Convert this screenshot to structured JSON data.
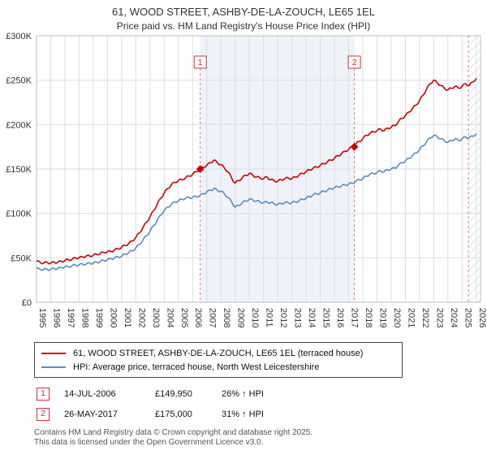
{
  "chart_data": {
    "type": "line",
    "title": "61, WOOD STREET, ASHBY-DE-LA-ZOUCH, LE65 1EL",
    "subtitle": "Price paid vs. HM Land Registry's House Price Index (HPI)",
    "ylim": [
      0,
      300
    ],
    "xlim": [
      1995,
      2026.3
    ],
    "y_ticks": [
      0,
      50,
      100,
      150,
      200,
      250,
      300
    ],
    "y_tick_labels": [
      "£0",
      "£50K",
      "£100K",
      "£150K",
      "£200K",
      "£250K",
      "£300K"
    ],
    "x_ticks": [
      1995,
      1996,
      1997,
      1998,
      1999,
      2000,
      2001,
      2002,
      2003,
      2004,
      2005,
      2006,
      2007,
      2008,
      2009,
      2010,
      2011,
      2012,
      2013,
      2014,
      2015,
      2016,
      2017,
      2018,
      2019,
      2020,
      2021,
      2022,
      2023,
      2024,
      2025,
      2026
    ],
    "grid": true,
    "legend_position": "bottom",
    "unit": "GBP thousands",
    "series": [
      {
        "name": "61, WOOD STREET, ASHBY-DE-LA-ZOUCH, LE65 1EL (terraced house)",
        "color": "#cc0000",
        "x_start": 1995,
        "x_step": 0.25,
        "values": [
          46,
          45,
          44,
          45,
          44,
          45,
          45,
          46,
          47,
          48,
          48,
          50,
          50,
          51,
          52,
          52,
          53,
          54,
          55,
          56,
          57,
          57,
          59,
          60,
          62,
          64,
          66,
          69,
          73,
          78,
          84,
          90,
          96,
          103,
          110,
          117,
          123,
          128,
          132,
          135,
          137,
          138,
          140,
          142,
          144,
          147,
          150,
          152,
          154,
          157,
          160,
          157,
          155,
          151,
          147,
          140,
          134,
          137,
          140,
          143,
          145,
          143,
          141,
          140,
          139,
          141,
          138,
          137,
          136,
          138,
          139,
          140,
          139,
          141,
          143,
          145,
          147,
          149,
          151,
          152,
          154,
          156,
          158,
          160,
          162,
          165,
          167,
          170,
          172,
          175,
          178,
          181,
          184,
          188,
          190,
          192,
          193,
          195,
          193,
          196,
          197,
          199,
          203,
          207,
          210,
          214,
          218,
          222,
          227,
          233,
          240,
          246,
          250,
          247,
          244,
          241,
          239,
          241,
          243,
          241,
          243,
          246,
          244,
          248,
          252
        ]
      },
      {
        "name": "HPI: Average price, terraced house, North West Leicestershire",
        "color": "#5b8cbe",
        "x_start": 1995,
        "x_step": 0.25,
        "values": [
          38,
          37,
          37,
          37,
          37,
          38,
          38,
          39,
          40,
          40,
          41,
          42,
          42,
          43,
          43,
          44,
          44,
          45,
          46,
          47,
          48,
          49,
          50,
          51,
          52,
          54,
          56,
          58,
          61,
          65,
          70,
          75,
          80,
          86,
          92,
          98,
          103,
          107,
          110,
          113,
          114,
          116,
          117,
          118,
          118,
          119,
          120,
          122,
          124,
          126,
          128,
          126,
          125,
          122,
          118,
          113,
          107,
          109,
          112,
          114,
          116,
          115,
          114,
          113,
          112,
          113,
          112,
          111,
          110,
          111,
          112,
          112,
          112,
          113,
          114,
          116,
          117,
          119,
          121,
          122,
          123,
          125,
          126,
          128,
          129,
          130,
          131,
          132,
          133,
          134,
          136,
          138,
          139,
          142,
          144,
          145,
          146,
          148,
          147,
          149,
          150,
          151,
          154,
          157,
          159,
          162,
          165,
          168,
          172,
          176,
          181,
          185,
          188,
          186,
          184,
          182,
          180,
          182,
          184,
          182,
          184,
          186,
          185,
          187,
          190
        ]
      }
    ],
    "sale_markers": [
      {
        "label": "1",
        "x": 2006.54,
        "value": 149.95
      },
      {
        "label": "2",
        "x": 2017.41,
        "value": 175
      }
    ],
    "shaded_region": [
      2006.54,
      2017.41
    ],
    "hatched_region": [
      2025.45,
      2026.3
    ],
    "hpi_end_line_x": 2025.45,
    "colors": {
      "price_line": "#cc0000",
      "hpi_line": "#5b8cbe",
      "sale_dashed_line": "#e07777",
      "grid": "#d9dde3",
      "shading": "#4d7fbe"
    }
  },
  "legend": {
    "items": [
      {
        "label": "61, WOOD STREET, ASHBY-DE-LA-ZOUCH, LE65 1EL (terraced house)",
        "color": "#cc0000"
      },
      {
        "label": "HPI: Average price, terraced house, North West Leicestershire",
        "color": "#5b8cbe"
      }
    ]
  },
  "transactions": [
    {
      "num": "1",
      "date": "14-JUL-2006",
      "price": "£149,950",
      "hpi": "26% ↑ HPI"
    },
    {
      "num": "2",
      "date": "26-MAY-2017",
      "price": "£175,000",
      "hpi": "31% ↑ HPI"
    }
  ],
  "footer": {
    "line1": "Contains HM Land Registry data © Crown copyright and database right 2025.",
    "line2": "This data is licensed under the Open Government Licence v3.0."
  }
}
